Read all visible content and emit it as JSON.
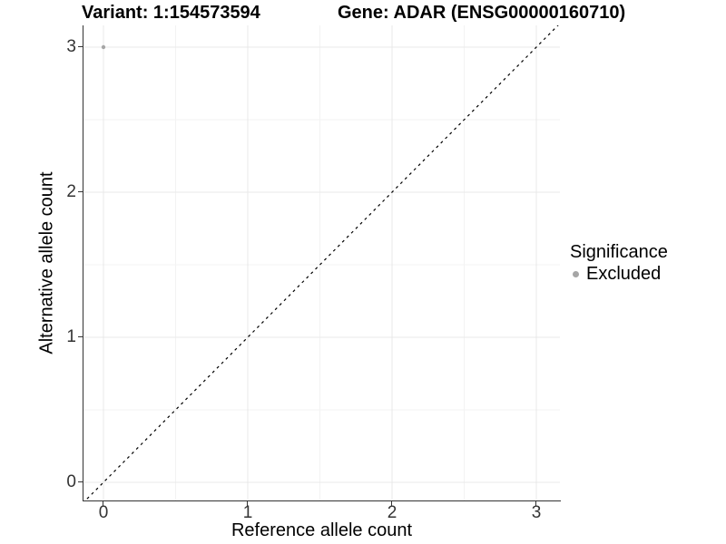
{
  "header": {
    "variant_title": "Variant: 1:154573594",
    "gene_title": "Gene: ADAR (ENSG00000160710)"
  },
  "axes": {
    "x": {
      "label": "Reference allele count",
      "tick_values": [
        0,
        1,
        2,
        3
      ],
      "tick_labels": [
        "0",
        "1",
        "2",
        "3"
      ],
      "minor_ticks": [
        0.5,
        1.5,
        2.5
      ]
    },
    "y": {
      "label": "Alternative allele count",
      "tick_values": [
        0,
        1,
        2,
        3
      ],
      "tick_labels": [
        "0",
        "1",
        "2",
        "3"
      ],
      "minor_ticks": [
        0.5,
        1.5,
        2.5
      ]
    }
  },
  "legend": {
    "title": "Significance",
    "items": [
      {
        "label": "Excluded",
        "color": "#a6a6a6",
        "marker": "circle"
      }
    ]
  },
  "colors": {
    "background": "#ffffff",
    "axis_line": "#333333",
    "tick_text": "#333333",
    "major_grid": "#e8e8e8",
    "minor_grid": "#f3f3f3",
    "reference_line": "#000000",
    "point": "#a6a6a6"
  },
  "chart_data": {
    "type": "scatter",
    "title_left": "Variant: 1:154573594",
    "title_right": "Gene: ADAR (ENSG00000160710)",
    "xlabel": "Reference allele count",
    "ylabel": "Alternative allele count",
    "xlim": [
      -0.14,
      3.16
    ],
    "ylim": [
      -0.13,
      3.15
    ],
    "x_ticks": [
      0,
      1,
      2,
      3
    ],
    "y_ticks": [
      0,
      1,
      2,
      3
    ],
    "grid": true,
    "legend_position": "right",
    "series": [
      {
        "name": "Excluded",
        "color": "#a6a6a6",
        "points": [
          {
            "x": 0,
            "y": 3
          }
        ]
      }
    ],
    "reference_line": {
      "type": "abline",
      "slope": 1,
      "intercept": 0,
      "style": "dashed",
      "color": "#000000"
    }
  }
}
